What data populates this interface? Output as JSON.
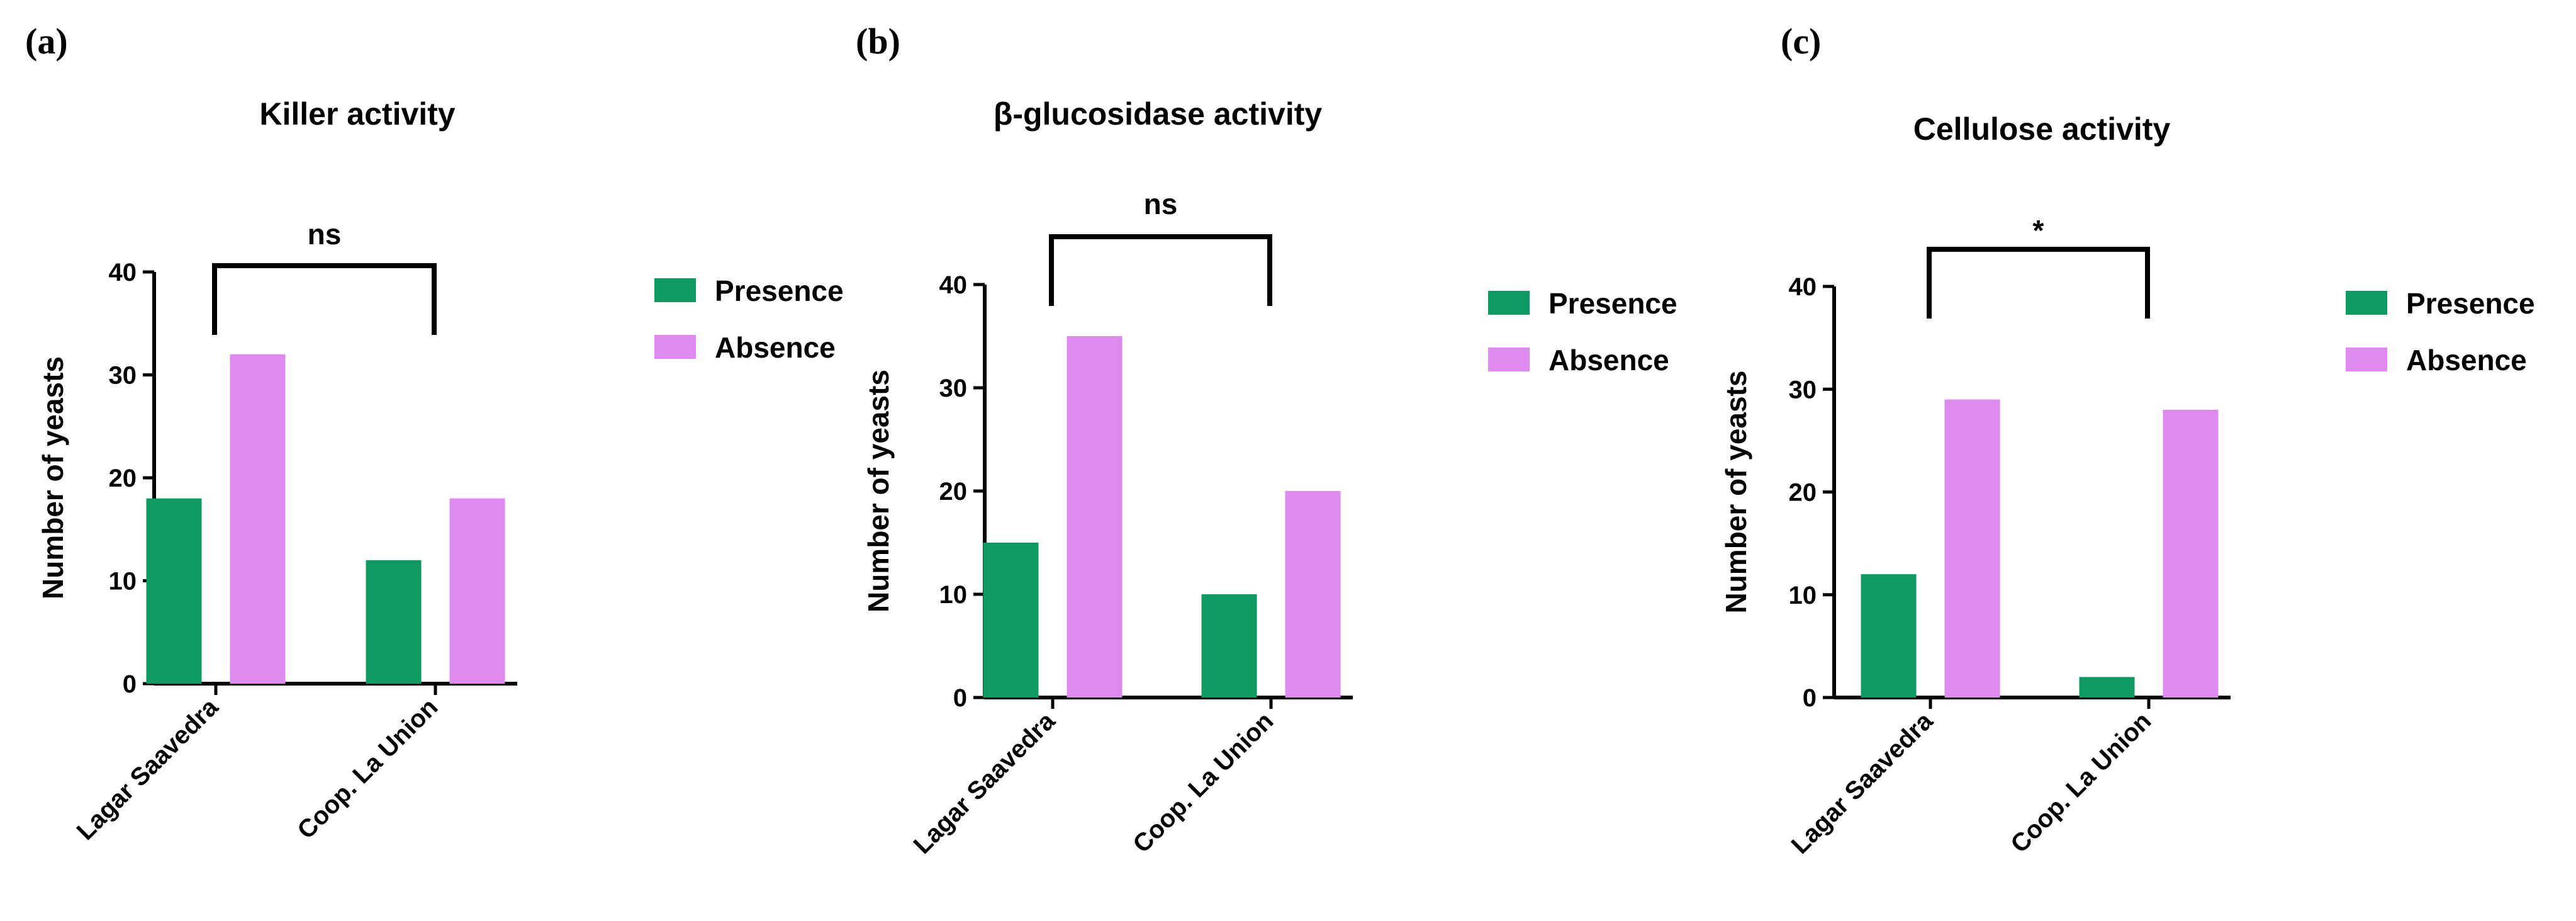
{
  "colors": {
    "presence": "#0f9a63",
    "absence": "#de8af0"
  },
  "chart_data": [
    {
      "type": "bar",
      "panel_label": "(a)",
      "title": "Killer activity",
      "xlabel": "",
      "ylabel": "Number of yeasts",
      "ylim": [
        0,
        40
      ],
      "yticks": [
        0,
        10,
        20,
        30,
        40
      ],
      "categories": [
        "Lagar Saavedra",
        "Coop. La Union"
      ],
      "series": [
        {
          "name": "Presence",
          "values": [
            18,
            12
          ]
        },
        {
          "name": "Absence",
          "values": [
            32,
            18
          ]
        }
      ],
      "significance": "ns",
      "legend": "right"
    },
    {
      "type": "bar",
      "panel_label": "(b)",
      "title": "β-glucosidase activity",
      "xlabel": "",
      "ylabel": "Number of yeasts",
      "ylim": [
        0,
        40
      ],
      "yticks": [
        0,
        10,
        20,
        30,
        40
      ],
      "categories": [
        "Lagar Saavedra",
        "Coop. La Union"
      ],
      "series": [
        {
          "name": "Presence",
          "values": [
            15,
            10
          ]
        },
        {
          "name": "Absence",
          "values": [
            35,
            20
          ]
        }
      ],
      "significance": "ns",
      "legend": "right"
    },
    {
      "type": "bar",
      "panel_label": "(c)",
      "title": "Cellulose activity",
      "xlabel": "",
      "ylabel": "Number of yeasts",
      "ylim": [
        0,
        40
      ],
      "yticks": [
        0,
        10,
        20,
        30,
        40
      ],
      "categories": [
        "Lagar Saavedra",
        "Coop. La Union"
      ],
      "series": [
        {
          "name": "Presence",
          "values": [
            12,
            2
          ]
        },
        {
          "name": "Absence",
          "values": [
            29,
            28
          ]
        }
      ],
      "significance": "*",
      "legend": "right"
    }
  ]
}
